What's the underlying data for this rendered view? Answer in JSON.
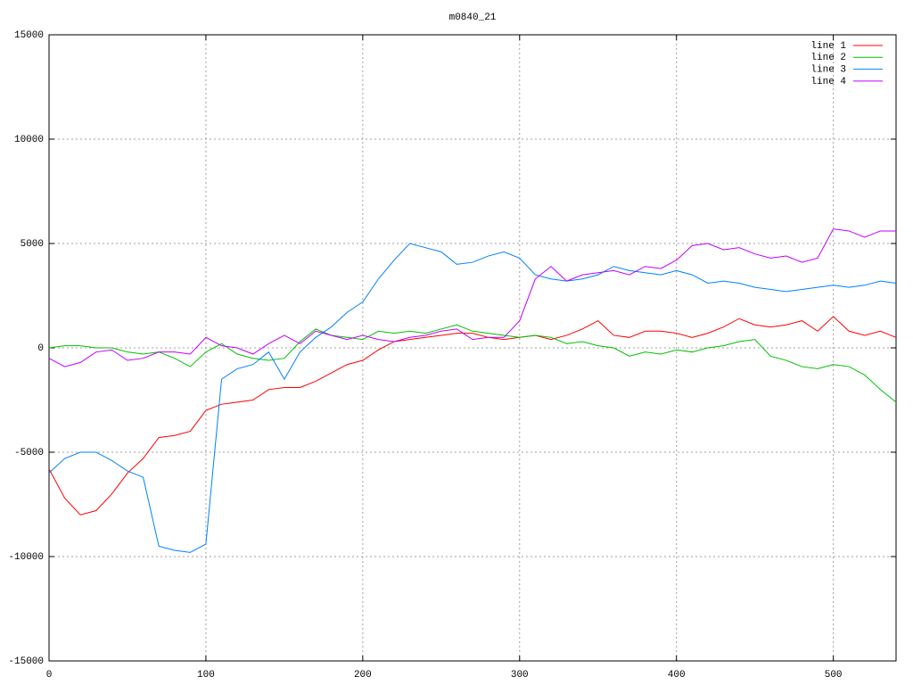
{
  "chart_data": {
    "type": "line",
    "title": "m0840_21",
    "x": [
      0,
      10,
      20,
      30,
      40,
      50,
      60,
      70,
      80,
      90,
      100,
      110,
      120,
      130,
      140,
      150,
      160,
      170,
      180,
      190,
      200,
      210,
      220,
      230,
      240,
      250,
      260,
      270,
      280,
      290,
      300,
      310,
      320,
      330,
      340,
      350,
      360,
      370,
      380,
      390,
      400,
      410,
      420,
      430,
      440,
      450,
      460,
      470,
      480,
      490,
      500,
      510,
      520,
      530,
      540
    ],
    "xlim": [
      0,
      540
    ],
    "ylim": [
      -15000,
      15000
    ],
    "xticks": [
      0,
      100,
      200,
      300,
      400,
      500
    ],
    "yticks": [
      -15000,
      -10000,
      -5000,
      0,
      5000,
      10000,
      15000
    ],
    "grid": true,
    "legend": "top-right",
    "series": [
      {
        "name": "line 1",
        "color": "#ff0000",
        "values": [
          -5800,
          -7200,
          -8000,
          -7800,
          -7000,
          -6000,
          -5300,
          -4300,
          -4200,
          -4000,
          -3000,
          -2700,
          -2600,
          -2500,
          -2000,
          -1900,
          -1900,
          -1600,
          -1200,
          -800,
          -600,
          -100,
          300,
          400,
          500,
          600,
          700,
          700,
          500,
          400,
          500,
          600,
          400,
          600,
          900,
          1300,
          600,
          500,
          800,
          800,
          700,
          500,
          700,
          1000,
          1400,
          1100,
          1000,
          1100,
          1300,
          800,
          1500,
          800,
          600,
          800,
          500
        ]
      },
      {
        "name": "line 2",
        "color": "#00c000",
        "values": [
          0,
          100,
          100,
          0,
          0,
          -200,
          -300,
          -200,
          -500,
          -900,
          -200,
          200,
          -300,
          -500,
          -600,
          -500,
          300,
          900,
          600,
          500,
          400,
          800,
          700,
          800,
          700,
          900,
          1100,
          800,
          700,
          600,
          500,
          600,
          500,
          200,
          300,
          100,
          0,
          -400,
          -200,
          -300,
          -100,
          -200,
          0,
          100,
          300,
          400,
          -400,
          -600,
          -900,
          -1000,
          -800,
          -900,
          -1300,
          -2000,
          -2600
        ]
      },
      {
        "name": "line 3",
        "color": "#0080ff",
        "values": [
          -6000,
          -5300,
          -5000,
          -5000,
          -5400,
          -5900,
          -6200,
          -9500,
          -9700,
          -9800,
          -9400,
          -1500,
          -1000,
          -800,
          -200,
          -1500,
          -200,
          500,
          1000,
          1700,
          2200,
          3300,
          4200,
          5000,
          4800,
          4600,
          4000,
          4100,
          4400,
          4600,
          4300,
          3500,
          3300,
          3200,
          3300,
          3500,
          3900,
          3700,
          3600,
          3500,
          3700,
          3500,
          3100,
          3200,
          3100,
          2900,
          2800,
          2700,
          2800,
          2900,
          3000,
          2900,
          3000,
          3200,
          3100
        ]
      },
      {
        "name": "line 4",
        "color": "#c000ff",
        "values": [
          -500,
          -900,
          -700,
          -200,
          -100,
          -600,
          -500,
          -200,
          -200,
          -300,
          500,
          100,
          0,
          -300,
          200,
          600,
          200,
          800,
          600,
          400,
          600,
          400,
          300,
          500,
          600,
          800,
          900,
          400,
          500,
          500,
          1300,
          3300,
          3900,
          3200,
          3500,
          3600,
          3700,
          3500,
          3900,
          3800,
          4200,
          4900,
          5000,
          4700,
          4800,
          4500,
          4300,
          4400,
          4100,
          4300,
          5700,
          5600,
          5300,
          5600,
          5600
        ]
      }
    ]
  }
}
